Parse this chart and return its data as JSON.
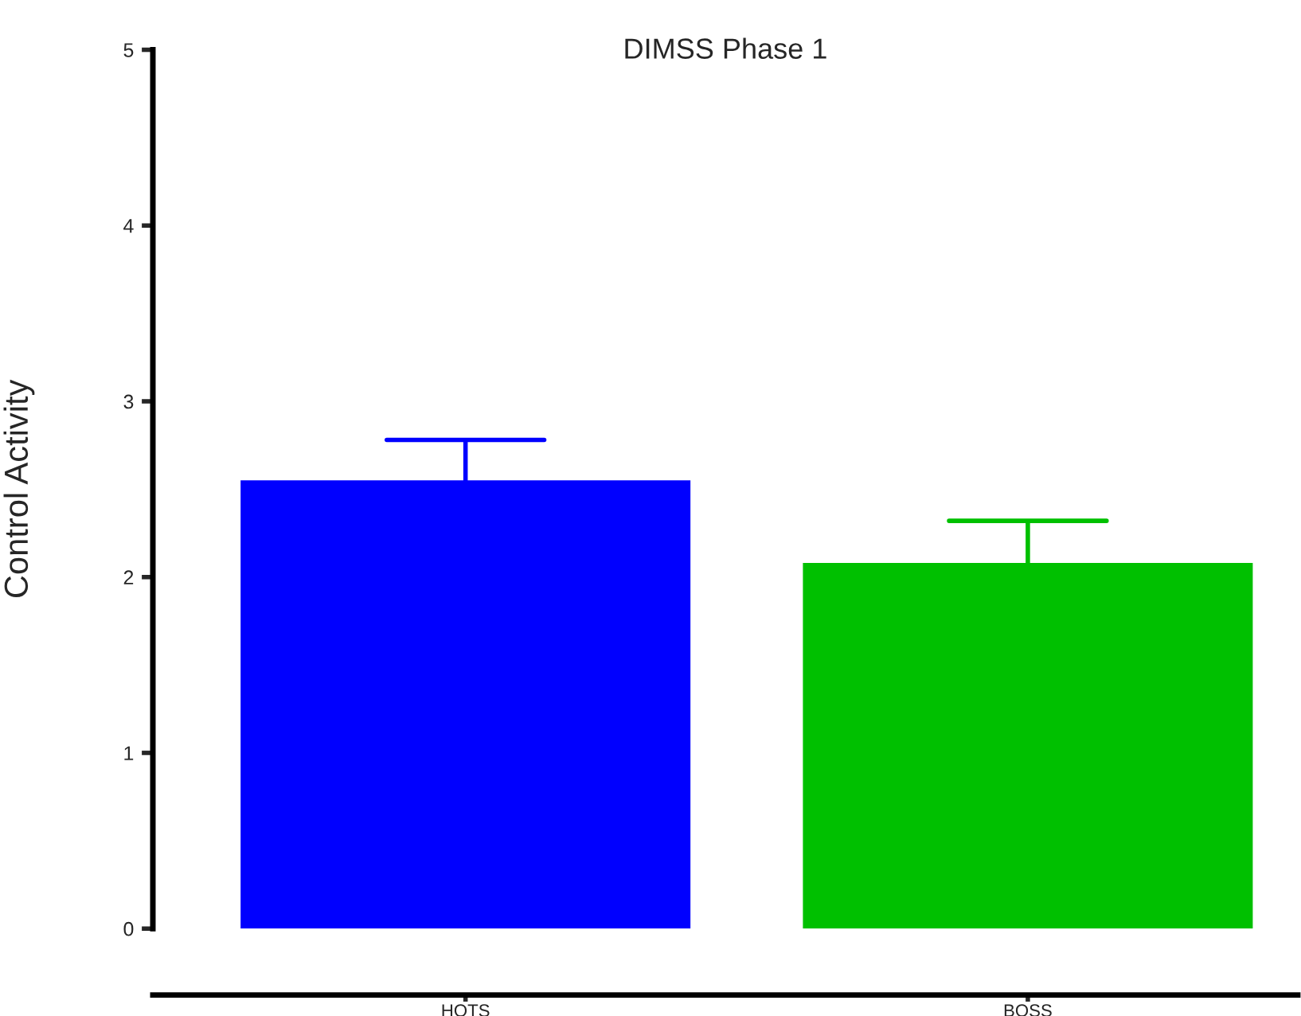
{
  "chart_data": {
    "type": "bar",
    "title": "DIMSS Phase 1",
    "ylabel": "Control Activity",
    "categories": [
      "HOTS",
      "BOSS"
    ],
    "values": [
      2.55,
      2.08
    ],
    "colors": [
      "#0000ff",
      "#00c000"
    ],
    "errors": [
      [
        2.55,
        2.78
      ],
      [
        2.08,
        2.32
      ]
    ],
    "ylim": [
      0,
      5
    ],
    "yticks": [
      0,
      1,
      2,
      3,
      4,
      5
    ],
    "grid": false,
    "legend": false
  }
}
